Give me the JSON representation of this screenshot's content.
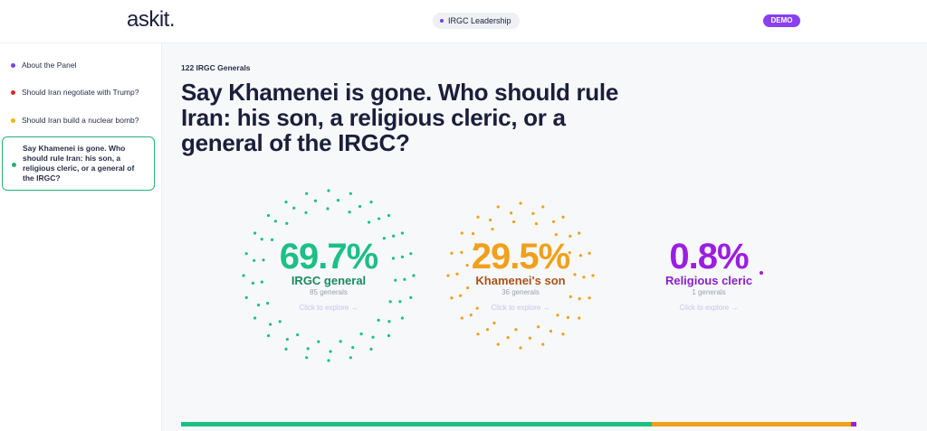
{
  "header": {
    "logo": "askit.",
    "topic": "IRGC Leadership",
    "badge": "DEMO"
  },
  "sidebar": {
    "items": [
      {
        "label": "About the Panel",
        "color": "#7b3fe4"
      },
      {
        "label": "Should Iran negotiate with Trump?",
        "color": "#d42a2a"
      },
      {
        "label": "Should Iran build a nuclear bomb?",
        "color": "#f0b400"
      },
      {
        "label": "Say Khamenei is gone. Who should rule Iran: his son, a religious cleric, or a general of the IRGC?",
        "color": "#22b573",
        "active": true
      }
    ]
  },
  "question": {
    "panel": "122 IRGC Generals",
    "title": "Say Khamenei is gone. Who should rule Iran: his son, a religious cleric, or a general of the IRGC?"
  },
  "results": [
    {
      "percent": 69.7,
      "percent_label": "69.7%",
      "label": "IRGC general",
      "count": "85 generals",
      "action": "Click to explore →",
      "color": "#1dbf85",
      "label_color": "#1a8a5f"
    },
    {
      "percent": 29.5,
      "percent_label": "29.5%",
      "label": "Khamenei's son",
      "count": "36 generals",
      "action": "Click to explore →",
      "color": "#f0a01c",
      "label_color": "#a9521a"
    },
    {
      "percent": 0.8,
      "percent_label": "0.8%",
      "label": "Religious cleric",
      "count": "1 generals",
      "action": "Click to explore →",
      "color": "#9b1fe0",
      "label_color": "#8a1fd0"
    }
  ]
}
